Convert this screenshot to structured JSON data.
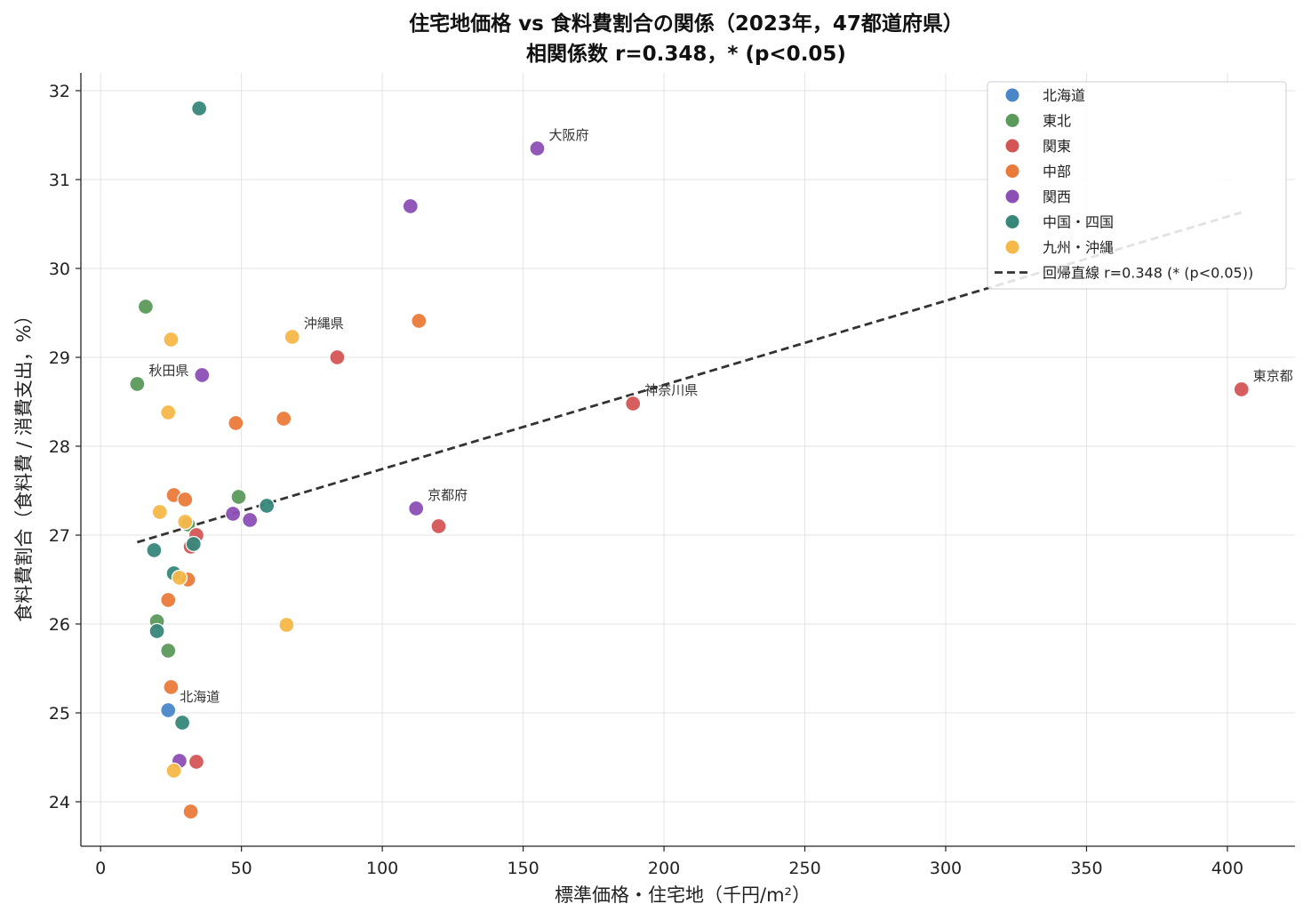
{
  "chart_data": {
    "type": "scatter",
    "title": "住宅地価格 vs 食料費割合の関係（2023年，47都道府県）",
    "subtitle": "相関係数 r=0.348，* (p<0.05)",
    "xlabel": "標準価格・住宅地（千円/m²）",
    "ylabel": "食料費割合（食料費 / 消費支出，%）",
    "xlim": [
      -7,
      424
    ],
    "ylim": [
      23.5,
      32.2
    ],
    "xticks": [
      0,
      50,
      100,
      150,
      200,
      250,
      300,
      350,
      400
    ],
    "yticks": [
      24,
      25,
      26,
      27,
      28,
      29,
      30,
      31,
      32
    ],
    "grid": true,
    "legend_position": "top-right",
    "series": [
      {
        "name": "北海道",
        "color": "#4a86c8",
        "points": [
          [
            24,
            25.03
          ]
        ]
      },
      {
        "name": "東北",
        "color": "#5b9a5b",
        "points": [
          [
            13,
            28.7
          ],
          [
            16,
            29.57
          ],
          [
            20,
            26.03
          ],
          [
            24,
            25.7
          ],
          [
            31,
            27.12
          ],
          [
            49,
            27.43
          ]
        ]
      },
      {
        "name": "関東",
        "color": "#d45555",
        "points": [
          [
            84,
            29.0
          ],
          [
            189,
            28.48
          ],
          [
            405,
            28.64
          ],
          [
            120,
            27.1
          ],
          [
            32,
            26.87
          ],
          [
            34,
            24.45
          ],
          [
            34,
            27.0
          ]
        ]
      },
      {
        "name": "中部",
        "color": "#ea7a3b",
        "points": [
          [
            113,
            29.41
          ],
          [
            65,
            28.31
          ],
          [
            48,
            28.26
          ],
          [
            26,
            27.45
          ],
          [
            30,
            27.4
          ],
          [
            31,
            26.5
          ],
          [
            24,
            26.27
          ],
          [
            25,
            25.29
          ],
          [
            32,
            23.89
          ]
        ]
      },
      {
        "name": "関西",
        "color": "#8b4fb5",
        "points": [
          [
            155,
            31.35
          ],
          [
            110,
            30.7
          ],
          [
            36,
            28.8
          ],
          [
            112,
            27.3
          ],
          [
            47,
            27.24
          ],
          [
            53,
            27.17
          ],
          [
            28,
            24.46
          ]
        ]
      },
      {
        "name": "中国・四国",
        "color": "#37877a",
        "points": [
          [
            35,
            31.8
          ],
          [
            59,
            27.33
          ],
          [
            33,
            26.9
          ],
          [
            19,
            26.83
          ],
          [
            26,
            26.57
          ],
          [
            20,
            25.92
          ],
          [
            29,
            24.89
          ]
        ]
      },
      {
        "name": "九州・沖縄",
        "color": "#f5b849",
        "points": [
          [
            68,
            29.23
          ],
          [
            25,
            29.2
          ],
          [
            24,
            28.38
          ],
          [
            21,
            27.26
          ],
          [
            30,
            27.15
          ],
          [
            28,
            26.52
          ],
          [
            66,
            25.99
          ],
          [
            26,
            24.35
          ]
        ]
      }
    ],
    "annotations": [
      {
        "text": "大阪府",
        "x": 155,
        "y": 31.35
      },
      {
        "text": "沖縄県",
        "x": 68,
        "y": 29.23
      },
      {
        "text": "秋田県",
        "x": 13,
        "y": 28.7
      },
      {
        "text": "神奈川県",
        "x": 189,
        "y": 28.48
      },
      {
        "text": "東京都",
        "x": 405,
        "y": 28.64
      },
      {
        "text": "京都府",
        "x": 112,
        "y": 27.3
      },
      {
        "text": "北海道",
        "x": 24,
        "y": 25.03
      }
    ],
    "regression": {
      "name": "回帰直線 r=0.348 (* (p<0.05))",
      "color": "#333333",
      "x": [
        13,
        405
      ],
      "y": [
        26.92,
        30.63
      ]
    }
  }
}
